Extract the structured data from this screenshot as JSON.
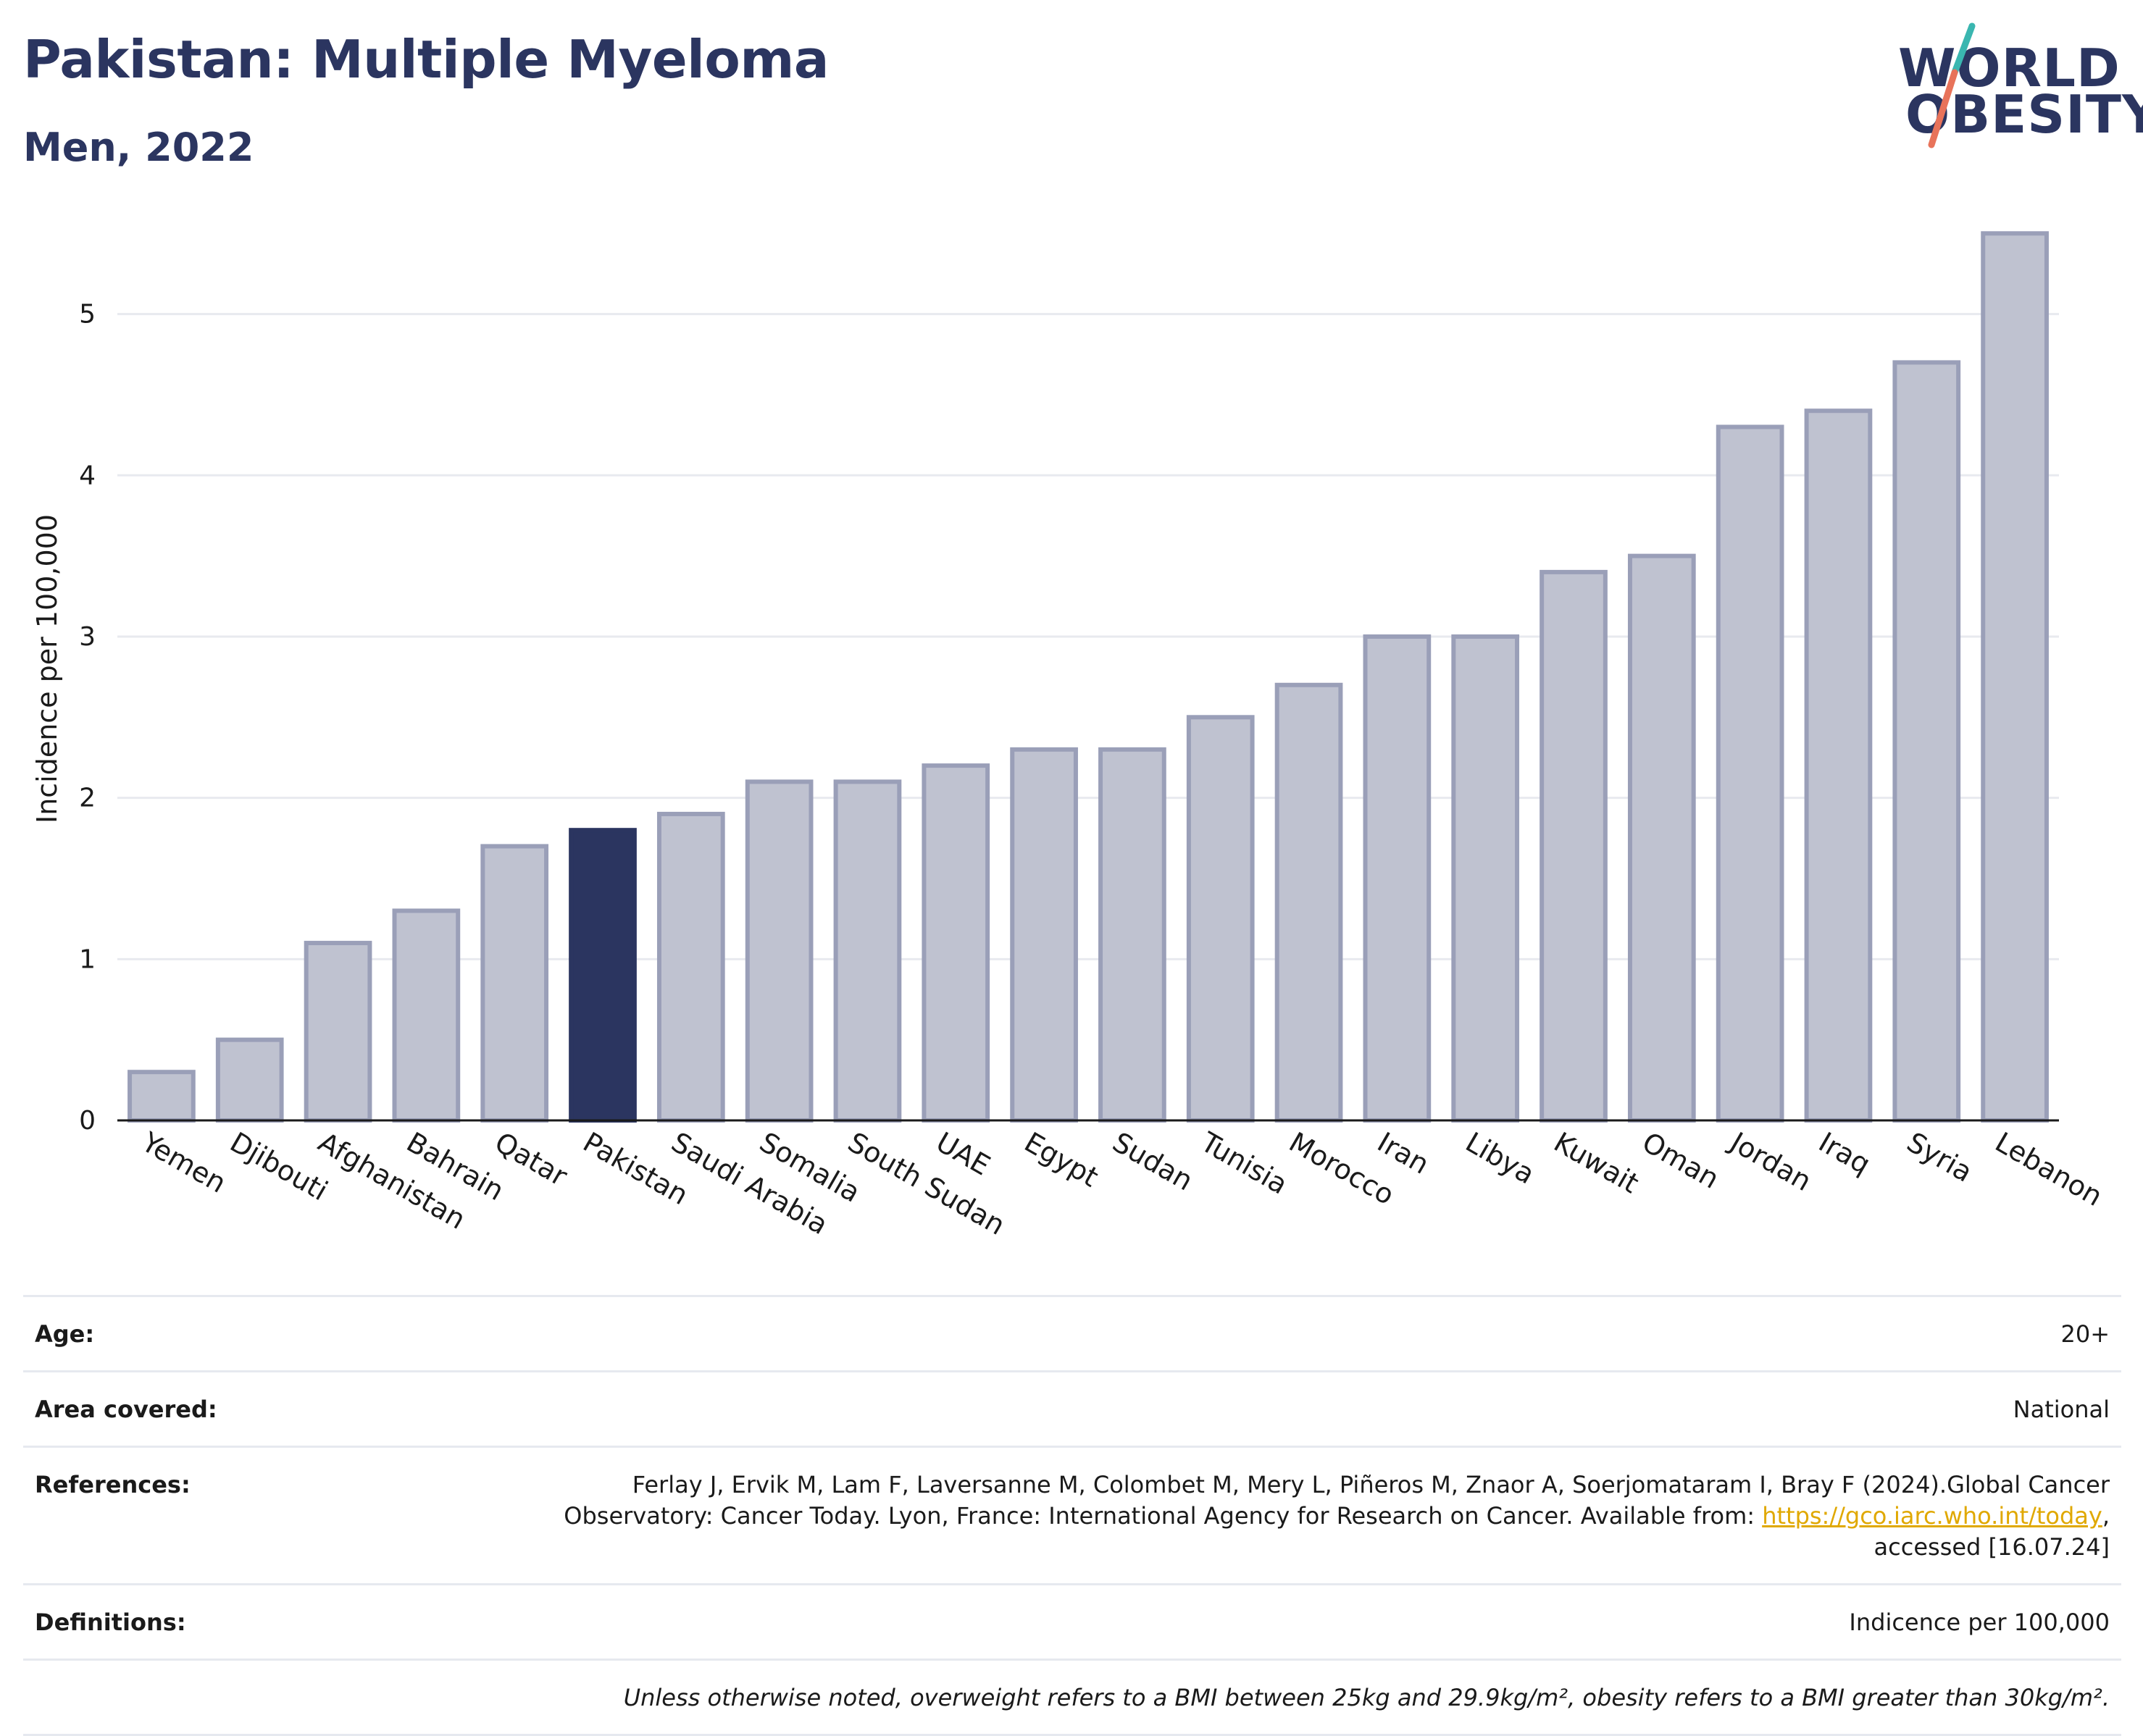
{
  "header": {
    "title": "Pakistan: Multiple Myeloma",
    "subtitle": "Men, 2022"
  },
  "logo": {
    "line1": "WORLD",
    "line2": "OBESITY",
    "colors": {
      "text": "#2b3560",
      "slash_top": "#3ab6b0",
      "slash_bottom": "#e8735a"
    }
  },
  "colors": {
    "highlight": "#2b3560",
    "bar_fill": "#bfc2d0",
    "bar_stroke": "#9a9fb8",
    "grid": "#e8eaef",
    "axis": "#1a1a1a"
  },
  "chart_data": {
    "type": "bar",
    "title": "Pakistan: Multiple Myeloma",
    "subtitle": "Men, 2022",
    "xlabel": "",
    "ylabel": "Incidence per 100,000",
    "ylim": [
      0,
      5.6
    ],
    "yticks": [
      0,
      1,
      2,
      3,
      4,
      5
    ],
    "grid": true,
    "highlight": "Pakistan",
    "categories": [
      "Yemen",
      "Djibouti",
      "Afghanistan",
      "Bahrain",
      "Qatar",
      "Pakistan",
      "Saudi Arabia",
      "Somalia",
      "South Sudan",
      "UAE",
      "Egypt",
      "Sudan",
      "Tunisia",
      "Morocco",
      "Iran",
      "Libya",
      "Kuwait",
      "Oman",
      "Jordan",
      "Iraq",
      "Syria",
      "Lebanon"
    ],
    "values": [
      0.3,
      0.5,
      1.1,
      1.3,
      1.7,
      1.8,
      1.9,
      2.1,
      2.1,
      2.2,
      2.3,
      2.3,
      2.5,
      2.7,
      3.0,
      3.0,
      3.4,
      3.5,
      4.3,
      4.4,
      4.7,
      5.5
    ]
  },
  "info": {
    "age_label": "Age:",
    "age_value": "20+",
    "area_label": "Area covered:",
    "area_value": "National",
    "refs_label": "References:",
    "refs_line1": "Ferlay J, Ervik M, Lam F, Laversanne M, Colombet M, Mery L, Piñeros M, Znaor A, Soerjomataram I, Bray F (2024).Global Cancer",
    "refs_line2_pre": "Observatory: Cancer Today. Lyon, France: International Agency for Research on Cancer. Available from: ",
    "refs_link": "https://gco.iarc.who.int/today",
    "refs_line2_post": ",",
    "refs_line3": "accessed [16.07.24]",
    "defs_label": "Definitions:",
    "defs_value": "Indicence per 100,000",
    "note": "Unless otherwise noted, overweight refers to a BMI between 25kg and 29.9kg/m², obesity refers to a BMI greater than 30kg/m²."
  }
}
